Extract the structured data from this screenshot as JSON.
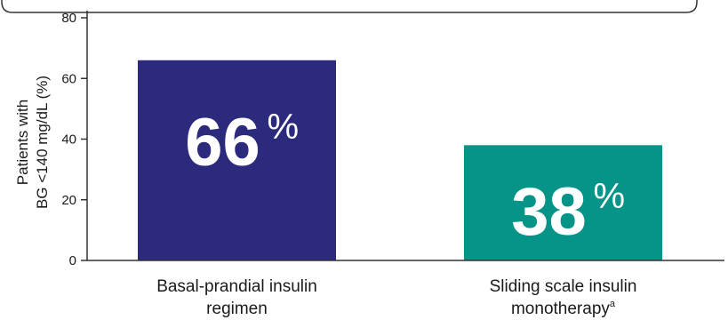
{
  "chart_data": {
    "type": "bar",
    "categories": [
      "Basal-prandial insulin regimen",
      "Sliding scale insulin monotherapy"
    ],
    "category_lines": [
      [
        "Basal-prandial insulin",
        "regimen"
      ],
      [
        "Sliding scale insulin",
        "monotherapy"
      ]
    ],
    "category_superscripts": [
      "",
      "a"
    ],
    "values": [
      66,
      38
    ],
    "value_labels": [
      "66",
      "38"
    ],
    "value_suffix": "%",
    "ylabel_lines": [
      "Patients with",
      "BG <140 mg/dL (%)"
    ],
    "ylim": [
      0,
      80
    ],
    "yticks": [
      0,
      20,
      40,
      60,
      80
    ],
    "grid": false,
    "colors": [
      "#2b2a7c",
      "#079488"
    ]
  }
}
